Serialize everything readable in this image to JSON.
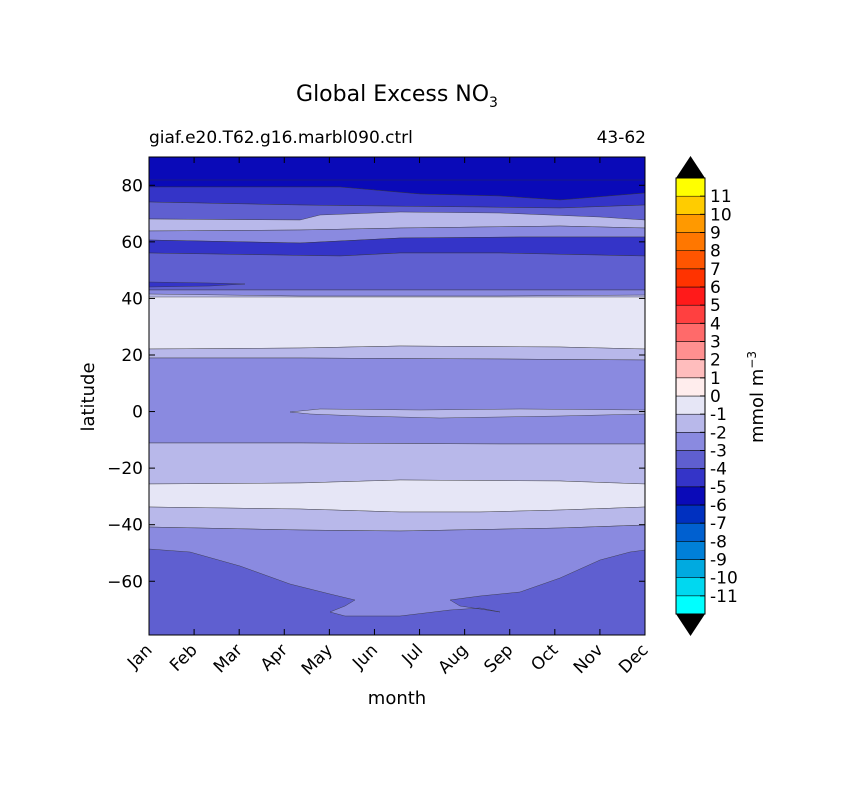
{
  "chart_data": {
    "type": "contourf",
    "title": "Global Excess NO",
    "title_subscript": "3",
    "case_name": "giaf.e20.T62.g16.marbl090.ctrl",
    "years": "43-62",
    "xlabel": "month",
    "ylabel": "latitude",
    "x_categories": [
      "Jan",
      "Feb",
      "Mar",
      "Apr",
      "May",
      "Jun",
      "Jul",
      "Aug",
      "Sep",
      "Oct",
      "Nov",
      "Dec"
    ],
    "y_ticks": [
      80,
      60,
      40,
      20,
      0,
      -20,
      -40,
      -60
    ],
    "y_tick_labels": [
      "80",
      "60",
      "40",
      "20",
      "0",
      "−20",
      "−40",
      "−60"
    ],
    "ylim": [
      -79,
      90
    ],
    "colorbar": {
      "label": "mmol m",
      "label_superscript": "−3",
      "extend": "both",
      "levels": [
        -12,
        -11,
        -10,
        -9,
        -8,
        -7,
        -6,
        -5,
        -4,
        -3,
        -2,
        -1,
        0,
        1,
        2,
        3,
        4,
        5,
        6,
        7,
        8,
        9,
        10,
        11,
        12
      ],
      "tick_labels": [
        "11",
        "10",
        "9",
        "8",
        "7",
        "6",
        "5",
        "4",
        "3",
        "2",
        "1",
        "0",
        "-1",
        "-2",
        "-3",
        "-4",
        "-5",
        "-6",
        "-7",
        "-8",
        "-9",
        "-10",
        "-11"
      ],
      "colors": [
        "#00ffff",
        "#00d8f0",
        "#00aae0",
        "#0080d8",
        "#0060d0",
        "#0030c0",
        "#0a0ab8",
        "#3434c8",
        "#5f5fd0",
        "#8a8ae0",
        "#b8b8ea",
        "#e6e6f6",
        "#ffeded",
        "#ffbdbd",
        "#ff9090",
        "#ff6a6a",
        "#ff4040",
        "#ff1a1a",
        "#ff3300",
        "#ff5500",
        "#ff7700",
        "#ff9900",
        "#ffcc00",
        "#ffff00"
      ],
      "under_color": "#000000",
      "over_color": "#000000"
    },
    "bands": [
      {
        "lat_top": 90,
        "lat_bottom": 76,
        "value": -6
      },
      {
        "lat_top": 76,
        "lat_bottom": 72,
        "value": -5
      },
      {
        "lat_top": 72,
        "lat_bottom": 69,
        "value": -4
      },
      {
        "lat_top": 69,
        "lat_bottom": 66,
        "value": -2
      },
      {
        "lat_top": 66,
        "lat_bottom": 64,
        "value": -3
      },
      {
        "lat_top": 64,
        "lat_bottom": 61,
        "value": -4
      },
      {
        "lat_top": 61,
        "lat_bottom": 57,
        "value": -5
      },
      {
        "lat_top": 57,
        "lat_bottom": 43,
        "value": -4
      },
      {
        "lat_top": 43,
        "lat_bottom": 40,
        "value": -3
      },
      {
        "lat_top": 40,
        "lat_bottom": 22,
        "value": -1
      },
      {
        "lat_top": 22,
        "lat_bottom": 18,
        "value": -2
      },
      {
        "lat_top": 18,
        "lat_bottom": 1,
        "value": -3
      },
      {
        "lat_top": 1,
        "lat_bottom": -2,
        "value": -2
      },
      {
        "lat_top": -2,
        "lat_bottom": -12,
        "value": -3
      },
      {
        "lat_top": -12,
        "lat_bottom": -26,
        "value": -2
      },
      {
        "lat_top": -26,
        "lat_bottom": -34,
        "value": -1
      },
      {
        "lat_top": -34,
        "lat_bottom": -42,
        "value": -2
      },
      {
        "lat_top": -42,
        "lat_bottom": -79,
        "value": -3
      },
      {
        "lat_top": -48,
        "lat_bottom": -79,
        "value": -4,
        "note": "poleward of ~-48 in Jan/Dec, retreating to ~-73 in Jul"
      }
    ]
  }
}
